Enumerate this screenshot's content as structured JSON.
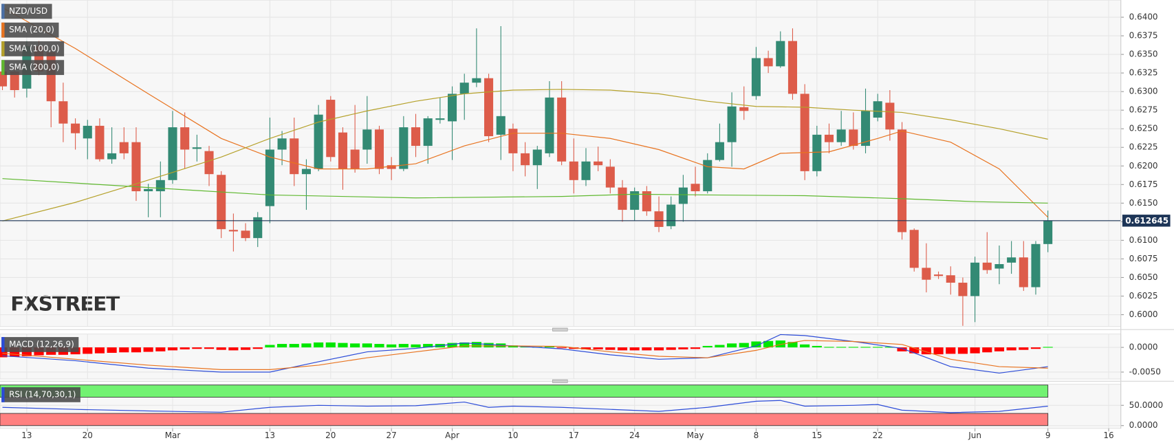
{
  "chart_data": [
    {
      "type": "candlestick",
      "title": "NZD/USD",
      "title_color": "#4a6fa5",
      "x": [
        0,
        1,
        2,
        3,
        4,
        5,
        6,
        7,
        8,
        9,
        10,
        11,
        12,
        13,
        14,
        15,
        16,
        17,
        18,
        19,
        20,
        21,
        22,
        23,
        24,
        25,
        26,
        27,
        28,
        29,
        30,
        31,
        32,
        33,
        34,
        35,
        36,
        37,
        38,
        39,
        40,
        41,
        42,
        43,
        44,
        45,
        46,
        47,
        48,
        49,
        50,
        51,
        52,
        53,
        54,
        55,
        56,
        57,
        58,
        59,
        60,
        61,
        62,
        63,
        64,
        65,
        66,
        67,
        68,
        69,
        70,
        71,
        72,
        73,
        74,
        75,
        76,
        77,
        78,
        79,
        80,
        81,
        82,
        83,
        84,
        85,
        86
      ],
      "open": [
        0.6327,
        0.6327,
        0.6304,
        0.6361,
        0.6353,
        0.6287,
        0.6257,
        0.6237,
        0.6254,
        0.6209,
        0.6232,
        0.6232,
        0.6166,
        0.6166,
        0.6181,
        0.6252,
        0.6223,
        0.622,
        0.6188,
        0.6114,
        0.6113,
        0.6103,
        0.6146,
        0.6222,
        0.6237,
        0.6189,
        0.6196,
        0.6289,
        0.6245,
        0.6222,
        0.6222,
        0.6249,
        0.6201,
        0.6196,
        0.6252,
        0.6227,
        0.6262,
        0.626,
        0.6297,
        0.6312,
        0.6318,
        0.6242,
        0.625,
        0.6217,
        0.6201,
        0.6217,
        0.6292,
        0.6206,
        0.6181,
        0.6206,
        0.6199,
        0.6171,
        0.6141,
        0.6166,
        0.6139,
        0.6119,
        0.6149,
        0.6176,
        0.6166,
        0.6208,
        0.6232,
        0.6279,
        0.6294,
        0.6345,
        0.6334,
        0.6368,
        0.6297,
        0.6193,
        0.6242,
        0.6232,
        0.6249,
        0.6227,
        0.6265,
        0.6285,
        0.6249,
        0.6114,
        0.6063,
        0.6054,
        0.6053,
        0.6043,
        0.6025,
        0.607,
        0.6062,
        0.607,
        0.6077,
        0.6037,
        0.6095
      ],
      "high": [
        0.6337,
        0.6332,
        0.6368,
        0.6368,
        0.6358,
        0.6312,
        0.6264,
        0.6262,
        0.6264,
        0.6252,
        0.6252,
        0.6252,
        0.6176,
        0.6206,
        0.6274,
        0.6272,
        0.6242,
        0.6227,
        0.6193,
        0.6136,
        0.6123,
        0.6138,
        0.6265,
        0.6247,
        0.6265,
        0.6209,
        0.6282,
        0.6294,
        0.6252,
        0.6282,
        0.6294,
        0.6254,
        0.6212,
        0.6267,
        0.627,
        0.6267,
        0.6292,
        0.6307,
        0.6324,
        0.6385,
        0.6324,
        0.6388,
        0.6257,
        0.6232,
        0.6227,
        0.6314,
        0.6314,
        0.6237,
        0.6224,
        0.6226,
        0.6209,
        0.6181,
        0.6171,
        0.6173,
        0.6159,
        0.6159,
        0.6188,
        0.6199,
        0.6217,
        0.6257,
        0.6299,
        0.6307,
        0.636,
        0.6355,
        0.6381,
        0.6385,
        0.631,
        0.6254,
        0.6257,
        0.6274,
        0.6272,
        0.6304,
        0.6297,
        0.6302,
        0.6259,
        0.6116,
        0.6096,
        0.6058,
        0.6065,
        0.605,
        0.6078,
        0.6111,
        0.6093,
        0.6099,
        0.6099,
        0.6099,
        0.614
      ],
      "low": [
        0.6302,
        0.6292,
        0.6292,
        0.6322,
        0.6252,
        0.6232,
        0.6222,
        0.6209,
        0.6206,
        0.6203,
        0.6209,
        0.6153,
        0.6131,
        0.6131,
        0.6176,
        0.6196,
        0.6206,
        0.6173,
        0.6103,
        0.6085,
        0.6099,
        0.6091,
        0.6123,
        0.6201,
        0.6173,
        0.6141,
        0.6193,
        0.6206,
        0.6168,
        0.6191,
        0.6203,
        0.6189,
        0.6181,
        0.6193,
        0.6212,
        0.6203,
        0.6257,
        0.6208,
        0.6262,
        0.6306,
        0.6232,
        0.6208,
        0.6193,
        0.6186,
        0.6169,
        0.6212,
        0.6201,
        0.6163,
        0.6173,
        0.6193,
        0.6163,
        0.6125,
        0.6126,
        0.6133,
        0.6111,
        0.6115,
        0.6125,
        0.6159,
        0.6163,
        0.6206,
        0.6199,
        0.6262,
        0.6289,
        0.6325,
        0.6332,
        0.6289,
        0.6181,
        0.6186,
        0.6217,
        0.6227,
        0.6222,
        0.6217,
        0.626,
        0.6234,
        0.6101,
        0.6058,
        0.603,
        0.6048,
        0.6027,
        0.5985,
        0.599,
        0.6055,
        0.6041,
        0.6055,
        0.6032,
        0.6027,
        0.6084
      ],
      "close": [
        0.6307,
        0.6302,
        0.6361,
        0.6327,
        0.6287,
        0.6257,
        0.6244,
        0.6254,
        0.6209,
        0.6217,
        0.6217,
        0.6166,
        0.6169,
        0.6181,
        0.6252,
        0.6222,
        0.6225,
        0.6189,
        0.6115,
        0.6112,
        0.6103,
        0.6131,
        0.6222,
        0.6237,
        0.6189,
        0.6196,
        0.6269,
        0.6212,
        0.6196,
        0.6196,
        0.6249,
        0.6196,
        0.6196,
        0.6252,
        0.6227,
        0.6264,
        0.6264,
        0.6297,
        0.6312,
        0.6318,
        0.624,
        0.6267,
        0.6217,
        0.6201,
        0.6222,
        0.6292,
        0.6206,
        0.6181,
        0.6206,
        0.6201,
        0.6171,
        0.6141,
        0.6166,
        0.6139,
        0.6118,
        0.6148,
        0.6171,
        0.6166,
        0.6208,
        0.6232,
        0.628,
        0.6274,
        0.6345,
        0.6334,
        0.6368,
        0.6297,
        0.6193,
        0.6242,
        0.6232,
        0.6249,
        0.6227,
        0.6274,
        0.6287,
        0.6249,
        0.6111,
        0.6063,
        0.6047,
        0.6052,
        0.6043,
        0.6025,
        0.607,
        0.606,
        0.6068,
        0.6077,
        0.6037,
        0.6095,
        0.612645
      ],
      "up_color": "#338a74",
      "down_color": "#dd5c4a",
      "last_price_color": "#1d3557",
      "overlays": [
        {
          "name": "SMA (20,0)",
          "color": "#e8731f",
          "x": [
            0,
            6,
            12,
            18,
            22,
            26,
            30,
            34,
            38,
            42,
            46,
            50,
            54,
            58,
            61,
            64,
            68,
            72,
            74,
            78,
            82,
            86
          ],
          "values": [
            0.6413,
            0.6358,
            0.6297,
            0.6237,
            0.6212,
            0.6196,
            0.6196,
            0.6203,
            0.6227,
            0.6244,
            0.6244,
            0.6237,
            0.6222,
            0.6199,
            0.6196,
            0.6217,
            0.6219,
            0.6237,
            0.6247,
            0.6232,
            0.6196,
            0.6131
          ]
        },
        {
          "name": "SMA (100,0)",
          "color": "#b5a12a",
          "x": [
            0,
            6,
            12,
            18,
            22,
            26,
            30,
            34,
            38,
            42,
            46,
            50,
            54,
            58,
            62,
            66,
            70,
            74,
            78,
            82,
            86
          ],
          "values": [
            0.6126,
            0.6151,
            0.6181,
            0.6212,
            0.6237,
            0.6259,
            0.6274,
            0.6287,
            0.6297,
            0.6302,
            0.6303,
            0.6302,
            0.6297,
            0.6287,
            0.628,
            0.6279,
            0.6275,
            0.6272,
            0.6262,
            0.625,
            0.6236
          ]
        },
        {
          "name": "SMA (200,0)",
          "color": "#5fb82f",
          "x": [
            0,
            12,
            22,
            34,
            46,
            52,
            58,
            66,
            74,
            80,
            86
          ],
          "values": [
            0.6183,
            0.6171,
            0.6161,
            0.6157,
            0.6159,
            0.6162,
            0.6161,
            0.616,
            0.6156,
            0.6152,
            0.615
          ]
        }
      ],
      "xlim": [
        -0.2,
        92
      ],
      "xticks": [
        {
          "value": 2,
          "label": "13"
        },
        {
          "value": 7,
          "label": "20"
        },
        {
          "value": 14,
          "label": "Mar"
        },
        {
          "value": 22,
          "label": "13"
        },
        {
          "value": 27,
          "label": "20"
        },
        {
          "value": 32,
          "label": "27"
        },
        {
          "value": 37,
          "label": "Apr"
        },
        {
          "value": 42,
          "label": "10"
        },
        {
          "value": 47,
          "label": "17"
        },
        {
          "value": 52,
          "label": "24"
        },
        {
          "value": 57,
          "label": "May"
        },
        {
          "value": 62,
          "label": "8"
        },
        {
          "value": 67,
          "label": "15"
        },
        {
          "value": 72,
          "label": "22"
        },
        {
          "value": 80,
          "label": "Jun"
        },
        {
          "value": 86,
          "label": "9"
        },
        {
          "value": 91,
          "label": "16"
        }
      ],
      "ylim": [
        0.5984,
        0.6423
      ],
      "yticks": [
        {
          "value": 0.6,
          "label": "0.6000"
        },
        {
          "value": 0.6025,
          "label": "0.6025"
        },
        {
          "value": 0.605,
          "label": "0.6050"
        },
        {
          "value": 0.6075,
          "label": "0.6075"
        },
        {
          "value": 0.61,
          "label": "0.6100"
        },
        {
          "value": 0.6125,
          "label": "0.6125"
        },
        {
          "value": 0.615,
          "label": "0.6150"
        },
        {
          "value": 0.6175,
          "label": "0.6175"
        },
        {
          "value": 0.62,
          "label": "0.6200"
        },
        {
          "value": 0.6225,
          "label": "0.6225"
        },
        {
          "value": 0.625,
          "label": "0.6250"
        },
        {
          "value": 0.6275,
          "label": "0.6275"
        },
        {
          "value": 0.63,
          "label": "0.6300"
        },
        {
          "value": 0.6325,
          "label": "0.6325"
        },
        {
          "value": 0.635,
          "label": "0.6350"
        },
        {
          "value": 0.6375,
          "label": "0.6375"
        },
        {
          "value": 0.64,
          "label": "0.6400"
        }
      ],
      "grid": true,
      "watermark": "FXSTREET"
    },
    {
      "type": "macd",
      "title": "MACD (12,26,9)",
      "histogram": [
        -0.002,
        -0.0019,
        -0.0018,
        -0.0016,
        -0.0015,
        -0.0015,
        -0.0014,
        -0.0013,
        -0.0012,
        -0.0011,
        -0.001,
        -0.001,
        -0.0009,
        -0.0008,
        -0.0006,
        -0.0004,
        -0.0003,
        -0.0003,
        -0.0005,
        -0.0006,
        -0.0005,
        -0.0003,
        0.0005,
        0.0007,
        0.0007,
        0.0008,
        0.001,
        0.001,
        0.0009,
        0.0008,
        0.0008,
        0.0007,
        0.0006,
        0.0007,
        0.0006,
        0.0007,
        0.0007,
        0.0009,
        0.001,
        0.0011,
        0.0009,
        0.0008,
        0.0004,
        0.0002,
        0.0001,
        0.0002,
        -0.0001,
        -0.0003,
        -0.0004,
        -0.0004,
        -0.0005,
        -0.0006,
        -0.0006,
        -0.0006,
        -0.0006,
        -0.0005,
        -0.0004,
        -0.0003,
        0.0003,
        0.0005,
        0.0008,
        0.0009,
        0.0012,
        0.0013,
        0.0014,
        0.0011,
        0.0006,
        0.0003,
        0.0001,
        0.0001,
        0.0001,
        0.0001,
        0.0001,
        0.0001,
        -0.0008,
        -0.0012,
        -0.0014,
        -0.0014,
        -0.0013,
        -0.0013,
        -0.0012,
        -0.001,
        -0.0008,
        -0.0006,
        -0.0005,
        -0.0003,
        0.0001
      ],
      "up_color": "#00e600",
      "down_color": "#ff0000",
      "series": [
        {
          "color": "#2b4bd8",
          "x": [
            0,
            6,
            12,
            18,
            22,
            26,
            30,
            34,
            38,
            42,
            46,
            50,
            54,
            58,
            62,
            64,
            66,
            70,
            74,
            78,
            82,
            86
          ],
          "values": [
            -0.0017,
            -0.0027,
            -0.0042,
            -0.005,
            -0.005,
            -0.0029,
            -0.0009,
            -0.0002,
            0.0009,
            0.0003,
            -0.0003,
            -0.0015,
            -0.0024,
            -0.0021,
            0.0003,
            0.0026,
            0.0024,
            0.0012,
            -0.0002,
            -0.0039,
            -0.0052,
            -0.0039
          ]
        },
        {
          "color": "#e8731f",
          "x": [
            0,
            6,
            12,
            18,
            22,
            26,
            30,
            34,
            38,
            42,
            46,
            50,
            54,
            58,
            62,
            64,
            66,
            70,
            74,
            78,
            82,
            86
          ],
          "values": [
            -0.0012,
            -0.0024,
            -0.0036,
            -0.0045,
            -0.0045,
            -0.0036,
            -0.0021,
            -0.0009,
            0.0003,
            0.0003,
            0.0002,
            -0.0009,
            -0.0018,
            -0.0021,
            -0.0006,
            0.0006,
            0.0014,
            0.0012,
            0.0006,
            -0.0024,
            -0.0039,
            -0.0042
          ]
        }
      ],
      "ylim": [
        -0.0064,
        0.0027
      ],
      "yticks": [
        {
          "value": 0,
          "label": "0.0000"
        },
        {
          "value": -0.005,
          "label": "-0.0050"
        }
      ]
    },
    {
      "type": "rsi",
      "title": "RSI (14,70,30,1)",
      "series": [
        {
          "color": "#2b4bd8",
          "x": [
            0,
            6,
            12,
            18,
            22,
            26,
            30,
            34,
            38,
            40,
            42,
            46,
            50,
            54,
            58,
            62,
            64,
            66,
            70,
            72,
            74,
            78,
            82,
            86
          ],
          "values": [
            45,
            40,
            36,
            33,
            45,
            50,
            48,
            49,
            58,
            45,
            48,
            45,
            40,
            35,
            45,
            60,
            62,
            48,
            50,
            52,
            38,
            32,
            35,
            48
          ]
        }
      ],
      "bands": [
        {
          "from": 70,
          "to": 100,
          "color": "#72f272"
        },
        {
          "from": 0,
          "to": 30,
          "color": "#ff8080"
        }
      ],
      "ylim": [
        -7,
        102
      ],
      "yticks": [
        {
          "value": 50,
          "label": "50.0000"
        },
        {
          "value": 0,
          "label": "0.0000"
        }
      ]
    }
  ]
}
